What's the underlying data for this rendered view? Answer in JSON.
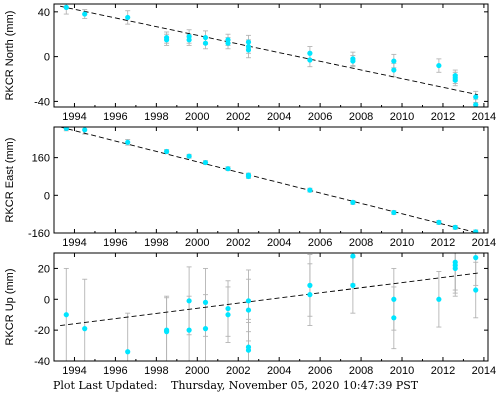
{
  "footer": {
    "label": "Plot Last Updated:",
    "timestamp": "Thursday, November 05, 2020 10:47:39 PST"
  },
  "colors": {
    "point": "#00e5ff",
    "error_bar": "#b4b4b4",
    "trend": "#000000",
    "axis": "#000000"
  },
  "chart_data": [
    {
      "type": "scatter",
      "ylabel": "RKCR North (mm)",
      "xlim": [
        1993.0,
        2014.2
      ],
      "ylim": [
        -45,
        47
      ],
      "xticks": [
        1994,
        1996,
        1998,
        2000,
        2002,
        2004,
        2006,
        2008,
        2010,
        2012,
        2014
      ],
      "yticks": [
        40,
        0,
        -40
      ],
      "trend": [
        [
          1993.3,
          45
        ],
        [
          2013.7,
          -34
        ]
      ],
      "points": [
        {
          "x": 1993.6,
          "y": 44,
          "err": 6
        },
        {
          "x": 1994.5,
          "y": 38,
          "err": 4
        },
        {
          "x": 1996.6,
          "y": 35,
          "err": 6
        },
        {
          "x": 1998.5,
          "y": 17,
          "err": 5
        },
        {
          "x": 1998.5,
          "y": 15,
          "err": 5
        },
        {
          "x": 1999.6,
          "y": 18,
          "err": 6
        },
        {
          "x": 1999.6,
          "y": 15,
          "err": 5
        },
        {
          "x": 2000.4,
          "y": 17,
          "err": 6
        },
        {
          "x": 2000.4,
          "y": 12,
          "err": 5
        },
        {
          "x": 2001.5,
          "y": 15,
          "err": 5
        },
        {
          "x": 2001.5,
          "y": 12,
          "err": 5
        },
        {
          "x": 2002.5,
          "y": 13,
          "err": 6
        },
        {
          "x": 2002.5,
          "y": 9,
          "err": 6
        },
        {
          "x": 2002.5,
          "y": 6,
          "err": 7
        },
        {
          "x": 2005.5,
          "y": 3,
          "err": 6
        },
        {
          "x": 2005.5,
          "y": -3,
          "err": 6
        },
        {
          "x": 2007.6,
          "y": -2,
          "err": 6
        },
        {
          "x": 2007.6,
          "y": -4,
          "err": 5
        },
        {
          "x": 2009.6,
          "y": -4,
          "err": 6
        },
        {
          "x": 2009.6,
          "y": -12,
          "err": 6
        },
        {
          "x": 2011.8,
          "y": -8,
          "err": 6
        },
        {
          "x": 2012.6,
          "y": -17,
          "err": 5
        },
        {
          "x": 2012.6,
          "y": -19,
          "err": 5
        },
        {
          "x": 2012.6,
          "y": -21,
          "err": 5
        },
        {
          "x": 2013.6,
          "y": -36,
          "err": 5
        },
        {
          "x": 2013.6,
          "y": -43,
          "err": 5
        }
      ]
    },
    {
      "type": "scatter",
      "ylabel": "RKCR East (mm)",
      "xlim": [
        1993.0,
        2014.2
      ],
      "ylim": [
        -160,
        290
      ],
      "xticks": [
        1994,
        1996,
        1998,
        2000,
        2002,
        2004,
        2006,
        2008,
        2010,
        2012,
        2014
      ],
      "yticks": [
        160,
        0,
        -160
      ],
      "trend": [
        [
          1993.3,
          290
        ],
        [
          2013.7,
          -160
        ]
      ],
      "points": [
        {
          "x": 1993.6,
          "y": 284,
          "err": 10
        },
        {
          "x": 1994.5,
          "y": 278,
          "err": 18
        },
        {
          "x": 1996.6,
          "y": 225,
          "err": 12
        },
        {
          "x": 1998.5,
          "y": 186,
          "err": 8
        },
        {
          "x": 1999.6,
          "y": 166,
          "err": 8
        },
        {
          "x": 2000.4,
          "y": 139,
          "err": 8
        },
        {
          "x": 2001.5,
          "y": 113,
          "err": 8
        },
        {
          "x": 2002.5,
          "y": 86,
          "err": 8
        },
        {
          "x": 2002.5,
          "y": 80,
          "err": 8
        },
        {
          "x": 2005.5,
          "y": 22,
          "err": 8
        },
        {
          "x": 2007.6,
          "y": -30,
          "err": 8
        },
        {
          "x": 2009.6,
          "y": -73,
          "err": 8
        },
        {
          "x": 2011.8,
          "y": -115,
          "err": 8
        },
        {
          "x": 2012.6,
          "y": -136,
          "err": 8
        },
        {
          "x": 2013.6,
          "y": -155,
          "err": 8
        }
      ]
    },
    {
      "type": "scatter",
      "ylabel": "RKCR Up (mm)",
      "xlim": [
        1993.0,
        2014.2
      ],
      "ylim": [
        -40,
        30
      ],
      "xticks": [
        1994,
        1996,
        1998,
        2000,
        2002,
        2004,
        2006,
        2008,
        2010,
        2012,
        2014
      ],
      "yticks": [
        20,
        0,
        -20,
        -40
      ],
      "trend": [
        [
          1993.3,
          -17
        ],
        [
          2013.7,
          17
        ]
      ],
      "points": [
        {
          "x": 1993.6,
          "y": -10,
          "err": 30
        },
        {
          "x": 1994.5,
          "y": -19,
          "err": 32
        },
        {
          "x": 1996.6,
          "y": -34,
          "err": 25
        },
        {
          "x": 1998.5,
          "y": -20,
          "err": 22
        },
        {
          "x": 1998.5,
          "y": -21,
          "err": 22
        },
        {
          "x": 1999.6,
          "y": -1,
          "err": 22
        },
        {
          "x": 1999.6,
          "y": -20,
          "err": 22
        },
        {
          "x": 2000.4,
          "y": -2,
          "err": 22
        },
        {
          "x": 2000.4,
          "y": -19,
          "err": 22
        },
        {
          "x": 2001.5,
          "y": -6,
          "err": 18
        },
        {
          "x": 2001.5,
          "y": -10,
          "err": 18
        },
        {
          "x": 2002.5,
          "y": -1,
          "err": 20
        },
        {
          "x": 2002.5,
          "y": -7,
          "err": 20
        },
        {
          "x": 2002.5,
          "y": -31,
          "err": 18
        },
        {
          "x": 2002.5,
          "y": -33,
          "err": 18
        },
        {
          "x": 2005.5,
          "y": 9,
          "err": 20
        },
        {
          "x": 2005.5,
          "y": 3,
          "err": 20
        },
        {
          "x": 2007.6,
          "y": 28,
          "err": 18
        },
        {
          "x": 2007.6,
          "y": 9,
          "err": 18
        },
        {
          "x": 2009.6,
          "y": 0,
          "err": 20
        },
        {
          "x": 2009.6,
          "y": -12,
          "err": 20
        },
        {
          "x": 2011.8,
          "y": 0,
          "err": 18
        },
        {
          "x": 2012.6,
          "y": 24,
          "err": 18
        },
        {
          "x": 2012.6,
          "y": 22,
          "err": 18
        },
        {
          "x": 2012.6,
          "y": 20,
          "err": 18
        },
        {
          "x": 2013.6,
          "y": 27,
          "err": 18
        },
        {
          "x": 2013.6,
          "y": 6,
          "err": 18
        }
      ]
    }
  ]
}
